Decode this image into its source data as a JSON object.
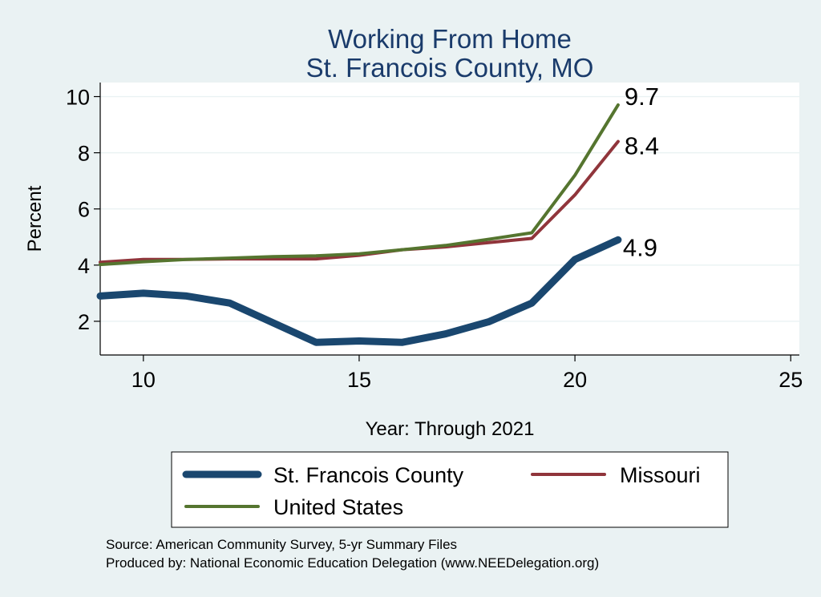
{
  "chart_data": {
    "type": "line",
    "title": "Working From Home",
    "subtitle": "St. Francois County, MO",
    "xlabel": "Year: Through 2021",
    "ylabel": "Percent",
    "xlim": [
      9,
      25.2
    ],
    "ylim": [
      0.8,
      10.5
    ],
    "xticks": [
      10,
      15,
      20,
      25
    ],
    "yticks": [
      2,
      4,
      6,
      8,
      10
    ],
    "grid": true,
    "legend_position": "bottom",
    "series": [
      {
        "name": "St. Francois County",
        "color": "#1a476f",
        "x": [
          9,
          10,
          11,
          12,
          13,
          14,
          15,
          16,
          17,
          18,
          19,
          20,
          21
        ],
        "y": [
          2.9,
          3.0,
          2.9,
          2.65,
          1.95,
          1.25,
          1.3,
          1.25,
          1.55,
          1.98,
          2.65,
          4.2,
          4.9
        ],
        "end_label": "4.9"
      },
      {
        "name": "Missouri",
        "color": "#90353b",
        "x": [
          9,
          10,
          11,
          12,
          13,
          14,
          15,
          16,
          17,
          18,
          19,
          20,
          21
        ],
        "y": [
          4.1,
          4.2,
          4.2,
          4.22,
          4.22,
          4.22,
          4.35,
          4.55,
          4.65,
          4.8,
          4.95,
          6.5,
          8.4
        ],
        "end_label": "8.4"
      },
      {
        "name": "United States",
        "color": "#55752f",
        "x": [
          9,
          10,
          11,
          12,
          13,
          14,
          15,
          16,
          17,
          18,
          19,
          20,
          21
        ],
        "y": [
          4.02,
          4.12,
          4.2,
          4.25,
          4.3,
          4.33,
          4.4,
          4.55,
          4.7,
          4.92,
          5.15,
          7.2,
          9.7
        ],
        "end_label": "9.7"
      }
    ],
    "notes": [
      "Source: American Community Survey, 5-yr Summary Files",
      "Produced by: National Economic Education Delegation (www.NEEDelegation.org)"
    ]
  }
}
